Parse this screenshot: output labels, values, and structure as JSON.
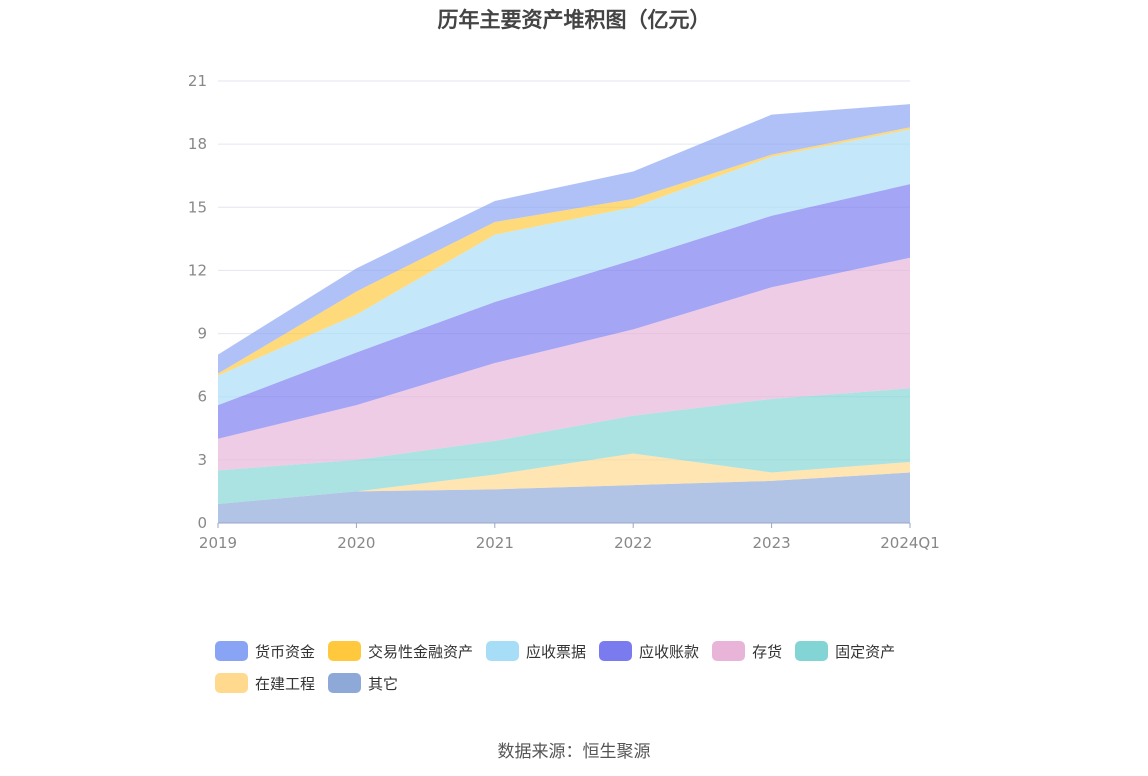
{
  "chart_data": {
    "type": "area",
    "stacked": true,
    "title": "历年主要资产堆积图（亿元）",
    "categories": [
      "2019",
      "2020",
      "2021",
      "2022",
      "2023",
      "2024Q1"
    ],
    "ylim": [
      0,
      21
    ],
    "yticks": [
      "0",
      "3",
      "6",
      "9",
      "12",
      "15",
      "18",
      "21"
    ],
    "grid": true,
    "legend_position": "bottom",
    "series": [
      {
        "name": "其它",
        "color": "#8EA8D8",
        "values": [
          0.9,
          1.5,
          1.6,
          1.8,
          2.0,
          2.4
        ]
      },
      {
        "name": "在建工程",
        "color": "#FFD98E",
        "values": [
          0.0,
          0.0,
          0.7,
          1.5,
          0.4,
          0.5
        ]
      },
      {
        "name": "固定资产",
        "color": "#83D5D5",
        "values": [
          1.6,
          1.5,
          1.6,
          1.8,
          3.5,
          3.5
        ]
      },
      {
        "name": "存货",
        "color": "#E8B4D8",
        "values": [
          1.5,
          2.6,
          3.7,
          4.1,
          5.3,
          6.2
        ]
      },
      {
        "name": "应收账款",
        "color": "#7B7BF0",
        "values": [
          1.6,
          2.5,
          2.9,
          3.3,
          3.4,
          3.5
        ]
      },
      {
        "name": "应收票据",
        "color": "#A8DDF7",
        "values": [
          1.4,
          1.8,
          3.2,
          2.5,
          2.8,
          2.6
        ]
      },
      {
        "name": "交易性金融资产",
        "color": "#FFC83D",
        "values": [
          0.1,
          1.1,
          0.6,
          0.4,
          0.1,
          0.1
        ]
      },
      {
        "name": "货币资金",
        "color": "#8AA4F5",
        "values": [
          0.9,
          1.1,
          1.0,
          1.3,
          1.9,
          1.1
        ]
      }
    ]
  },
  "legend": [
    {
      "label": "货币资金",
      "color": "#8AA4F5"
    },
    {
      "label": "交易性金融资产",
      "color": "#FFC83D"
    },
    {
      "label": "应收票据",
      "color": "#A8DDF7"
    },
    {
      "label": "应收账款",
      "color": "#7B7BF0"
    },
    {
      "label": "存货",
      "color": "#E8B4D8"
    },
    {
      "label": "固定资产",
      "color": "#83D5D5"
    },
    {
      "label": "在建工程",
      "color": "#FFD98E"
    },
    {
      "label": "其它",
      "color": "#8EA8D8"
    }
  ],
  "source": "数据来源：恒生聚源"
}
